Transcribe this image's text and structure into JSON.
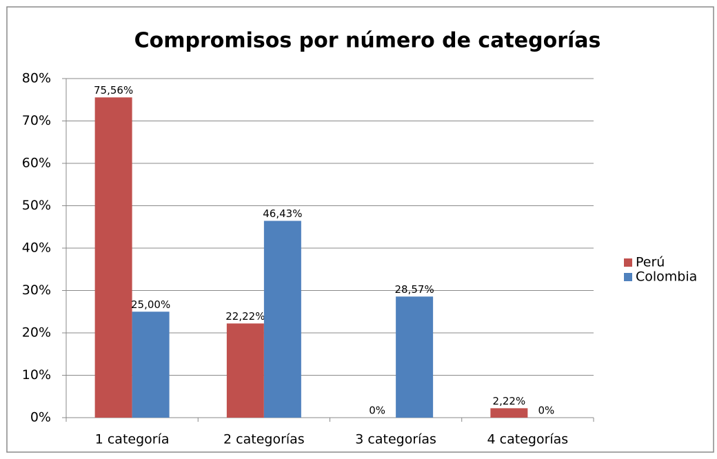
{
  "chart_data": {
    "type": "bar",
    "title": "Compromisos  por número de categorías",
    "categories": [
      "1 categoría",
      "2 categorías",
      "3 categorías",
      "4 categorías"
    ],
    "series": [
      {
        "name": "Perú",
        "color": "#c0504d",
        "values": [
          75.56,
          22.22,
          0,
          2.22
        ],
        "value_labels": [
          "75,56%",
          "22,22%",
          "0%",
          "2,22%"
        ]
      },
      {
        "name": "Colombia",
        "color": "#4f81bd",
        "values": [
          25.0,
          46.43,
          28.57,
          0
        ],
        "value_labels": [
          "25,00%",
          "46,43%",
          "28,57%",
          "0%"
        ]
      }
    ],
    "ylim": [
      0,
      80
    ],
    "yticks": [
      {
        "value": 0,
        "label": "0%"
      },
      {
        "value": 10,
        "label": "10%"
      },
      {
        "value": 20,
        "label": "20%"
      },
      {
        "value": 30,
        "label": "30%"
      },
      {
        "value": 40,
        "label": "40%"
      },
      {
        "value": 50,
        "label": "50%"
      },
      {
        "value": 60,
        "label": "60%"
      },
      {
        "value": 70,
        "label": "70%"
      },
      {
        "value": 80,
        "label": "80%"
      }
    ],
    "grid": true,
    "legend": "right"
  }
}
